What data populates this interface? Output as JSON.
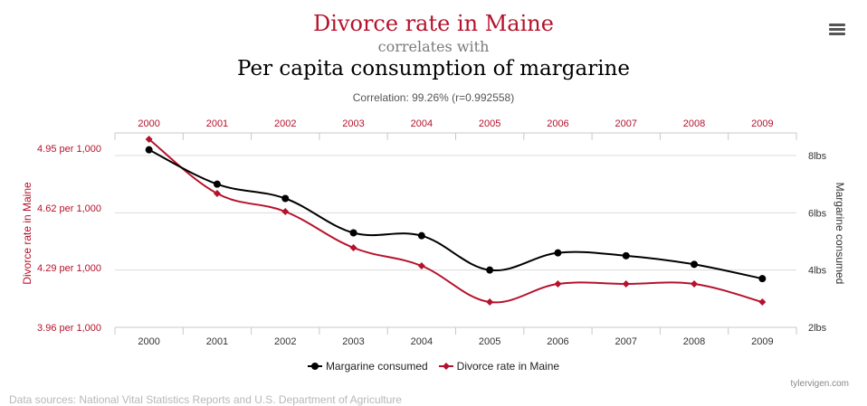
{
  "header": {
    "title_a": "Divorce rate in Maine",
    "connector": "correlates with",
    "title_b": "Per capita consumption of margarine",
    "correlation": "Correlation: 99.26% (r=0.992558)"
  },
  "menu_icon": "hamburger-menu-icon",
  "colors": {
    "divorce": "#b5122b",
    "margarine": "#000000"
  },
  "chart_data": {
    "type": "line",
    "x": [
      "2000",
      "2001",
      "2002",
      "2003",
      "2004",
      "2005",
      "2006",
      "2007",
      "2008",
      "2009"
    ],
    "series": [
      {
        "name": "Margarine consumed",
        "axis": "right",
        "color": "#000000",
        "marker": "circle",
        "values": [
          8.2,
          7.0,
          6.5,
          5.3,
          5.2,
          4.0,
          4.6,
          4.5,
          4.2,
          3.7
        ]
      },
      {
        "name": "Divorce rate in Maine",
        "axis": "left",
        "color": "#b5122b",
        "marker": "diamond",
        "values": [
          5.0,
          4.7,
          4.6,
          4.4,
          4.3,
          4.1,
          4.2,
          4.2,
          4.2,
          4.1
        ]
      }
    ],
    "left_axis": {
      "label": "Divorce rate in Maine",
      "ticks": [
        "4.95 per 1,000",
        "4.62 per 1,000",
        "4.29 per 1,000",
        "3.96 per 1,000"
      ],
      "tick_values": [
        4.95,
        4.62,
        4.29,
        3.96
      ],
      "range": [
        3.96,
        5.0
      ]
    },
    "right_axis": {
      "label": "Margarine consumed",
      "ticks": [
        "8lbs",
        "6lbs",
        "4lbs",
        "2lbs"
      ],
      "tick_values": [
        8,
        6,
        4,
        2
      ],
      "range": [
        2,
        8.6
      ]
    },
    "grid": true,
    "legend_position": "bottom-center"
  },
  "footer": {
    "credit": "tylervigen.com",
    "sources": "Data sources: National Vital Statistics Reports and U.S. Department of Agriculture"
  }
}
